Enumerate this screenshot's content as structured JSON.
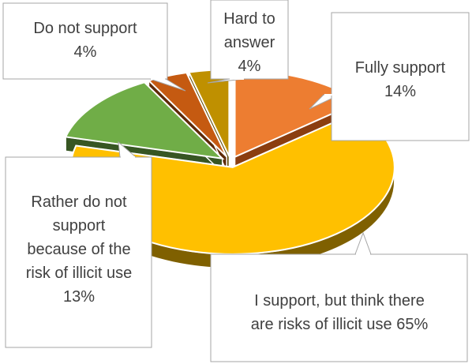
{
  "chart_data": {
    "type": "pie",
    "style": "3d-exploded",
    "title": "",
    "slices": [
      {
        "label_lines": [
          "Fully support"
        ],
        "value": 14,
        "value_label": "14%",
        "color": "#ED7D31",
        "side_color": "#8B3E10"
      },
      {
        "label_lines": [
          "I support, but think there",
          "are risks of illicit use 65%"
        ],
        "value": 65,
        "value_label": "",
        "color": "#FFC000",
        "side_color": "#7F6000"
      },
      {
        "label_lines": [
          "Rather do not",
          "support",
          "because of the",
          "risk of illicit use"
        ],
        "value": 13,
        "value_label": "13%",
        "color": "#70AD47",
        "side_color": "#375623"
      },
      {
        "label_lines": [
          "Do not support"
        ],
        "value": 4,
        "value_label": "4%",
        "color": "#C55A11",
        "side_color": "#5E2A07"
      },
      {
        "label_lines": [
          "Hard to",
          "answer"
        ],
        "value": 4,
        "value_label": "4%",
        "color": "#BF9000",
        "side_color": "#5F4800"
      }
    ]
  }
}
